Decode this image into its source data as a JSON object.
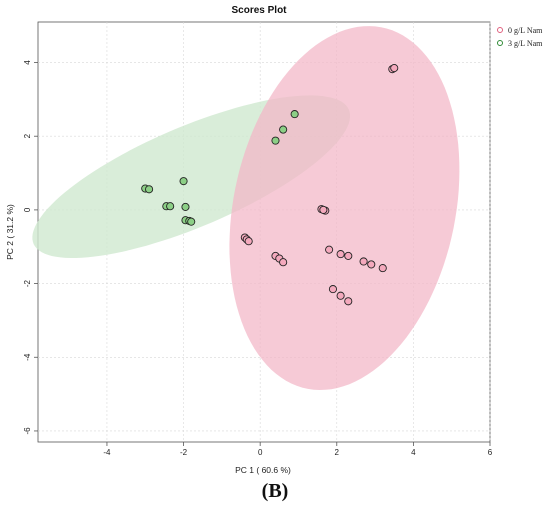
{
  "chart_data": {
    "type": "scatter",
    "title": "Scores Plot",
    "xlabel": "PC 1 ( 60.6 %)",
    "ylabel": "PC 2 ( 31.2 %)",
    "xlim": [
      -5.8,
      6.0
    ],
    "ylim": [
      -6.3,
      5.1
    ],
    "xticks": [
      -4,
      -2,
      0,
      2,
      4,
      6
    ],
    "yticks": [
      4,
      2,
      0,
      -2,
      -4,
      -6
    ],
    "grid": true,
    "legend_position": "top-right",
    "series": [
      {
        "name": "0 g/L Nam",
        "color": "#e0607e",
        "fill": "#f4a9bd",
        "ellipse_fill": "#f2b6c6",
        "ellipse": {
          "cx": 2.2,
          "cy": 0.05,
          "rx": 5.0,
          "ry": 2.9,
          "angle_deg": 79
        },
        "points": [
          [
            3.45,
            3.82
          ],
          [
            3.5,
            3.85
          ],
          [
            1.6,
            0.02
          ],
          [
            1.7,
            -0.02
          ],
          [
            1.65,
            0.0
          ],
          [
            -0.4,
            -0.75
          ],
          [
            -0.35,
            -0.8
          ],
          [
            -0.3,
            -0.85
          ],
          [
            0.4,
            -1.25
          ],
          [
            0.5,
            -1.32
          ],
          [
            0.6,
            -1.42
          ],
          [
            1.8,
            -1.08
          ],
          [
            2.1,
            -1.2
          ],
          [
            2.3,
            -1.25
          ],
          [
            2.7,
            -1.4
          ],
          [
            2.9,
            -1.48
          ],
          [
            3.2,
            -1.58
          ],
          [
            1.9,
            -2.15
          ],
          [
            2.1,
            -2.33
          ],
          [
            2.3,
            -2.48
          ]
        ]
      },
      {
        "name": "3 g/L Nam",
        "color": "#2f8a36",
        "fill": "#8ccf86",
        "ellipse_fill": "#cfe8cf",
        "ellipse": {
          "cx": -1.8,
          "cy": 0.9,
          "rx": 4.5,
          "ry": 1.35,
          "angle_deg": 24
        },
        "points": [
          [
            -3.0,
            0.58
          ],
          [
            -2.9,
            0.56
          ],
          [
            -2.45,
            0.1
          ],
          [
            -2.35,
            0.1
          ],
          [
            -2.0,
            0.78
          ],
          [
            -1.95,
            0.08
          ],
          [
            -1.95,
            -0.28
          ],
          [
            -1.85,
            -0.3
          ],
          [
            -1.8,
            -0.32
          ],
          [
            0.4,
            1.88
          ],
          [
            0.6,
            2.18
          ],
          [
            0.9,
            2.6
          ]
        ]
      }
    ]
  },
  "caption": "(B)"
}
